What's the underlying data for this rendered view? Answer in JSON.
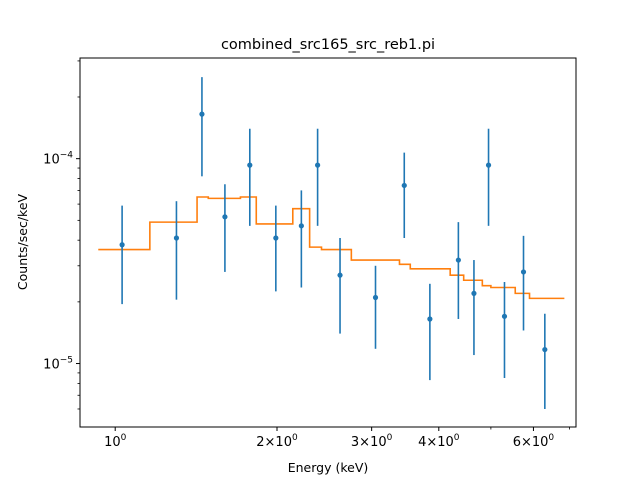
{
  "chart_data": {
    "type": "scatter",
    "title": "combined_src165_src_reb1.pi",
    "xlabel": "Energy (keV)",
    "ylabel": "Counts/sec/keV",
    "xscale": "log",
    "yscale": "log",
    "xlim": [
      0.86,
      7.2
    ],
    "ylim": [
      4.9e-06,
      0.00031
    ],
    "grid": false,
    "legend": "none",
    "x_ticks": [
      {
        "value": 1,
        "base": "10",
        "exp": "0"
      },
      {
        "value": 2,
        "base": "2×10",
        "exp": "0"
      },
      {
        "value": 3,
        "base": "3×10",
        "exp": "0"
      },
      {
        "value": 4,
        "base": "4×10",
        "exp": "0"
      },
      {
        "value": 6,
        "base": "6×10",
        "exp": "0"
      }
    ],
    "x_minor_ticks": [
      5,
      7
    ],
    "y_ticks": [
      {
        "value": 1e-05,
        "base": "10",
        "exp": "−5"
      },
      {
        "value": 0.0001,
        "base": "10",
        "exp": "−4"
      }
    ],
    "y_minor_ticks": [
      6e-06,
      7e-06,
      8e-06,
      9e-06,
      2e-05,
      3e-05,
      4e-05,
      5e-05,
      6e-05,
      7e-05,
      8e-05,
      9e-05,
      0.0002,
      0.0003
    ],
    "data_points": {
      "color": "#1f77b4",
      "points": [
        {
          "x": 1.03,
          "y": 3.8e-05,
          "ylo": 1.95e-05,
          "yhi": 5.9e-05
        },
        {
          "x": 1.3,
          "y": 4.1e-05,
          "ylo": 2.05e-05,
          "yhi": 6.2e-05
        },
        {
          "x": 1.45,
          "y": 0.000165,
          "ylo": 8.2e-05,
          "yhi": 0.00025
        },
        {
          "x": 1.6,
          "y": 5.2e-05,
          "ylo": 2.8e-05,
          "yhi": 7.5e-05
        },
        {
          "x": 1.78,
          "y": 9.3e-05,
          "ylo": 4.7e-05,
          "yhi": 0.00014
        },
        {
          "x": 1.99,
          "y": 4.1e-05,
          "ylo": 2.25e-05,
          "yhi": 5.9e-05
        },
        {
          "x": 2.22,
          "y": 4.7e-05,
          "ylo": 2.35e-05,
          "yhi": 7e-05
        },
        {
          "x": 2.38,
          "y": 9.3e-05,
          "ylo": 4.7e-05,
          "yhi": 0.00014
        },
        {
          "x": 2.62,
          "y": 2.7e-05,
          "ylo": 1.4e-05,
          "yhi": 4.1e-05
        },
        {
          "x": 3.05,
          "y": 2.1e-05,
          "ylo": 1.18e-05,
          "yhi": 3e-05
        },
        {
          "x": 3.45,
          "y": 7.4e-05,
          "ylo": 4.1e-05,
          "yhi": 0.000107
        },
        {
          "x": 3.85,
          "y": 1.65e-05,
          "ylo": 8.3e-06,
          "yhi": 2.45e-05
        },
        {
          "x": 4.35,
          "y": 3.2e-05,
          "ylo": 1.65e-05,
          "yhi": 4.9e-05
        },
        {
          "x": 4.65,
          "y": 2.2e-05,
          "ylo": 1.1e-05,
          "yhi": 3.2e-05
        },
        {
          "x": 4.95,
          "y": 9.3e-05,
          "ylo": 4.7e-05,
          "yhi": 0.00014
        },
        {
          "x": 5.3,
          "y": 1.7e-05,
          "ylo": 8.5e-06,
          "yhi": 2.5e-05
        },
        {
          "x": 5.75,
          "y": 2.8e-05,
          "ylo": 1.45e-05,
          "yhi": 4.2e-05
        },
        {
          "x": 6.3,
          "y": 1.17e-05,
          "ylo": 6e-06,
          "yhi": 1.75e-05
        }
      ]
    },
    "model": {
      "type": "step",
      "color": "#ff7f0e",
      "edges": [
        0.93,
        1.16,
        1.42,
        1.49,
        1.71,
        1.83,
        2.14,
        2.3,
        2.42,
        2.75,
        3.38,
        3.54,
        4.2,
        4.45,
        4.82,
        5.0,
        5.55,
        5.9,
        6.85
      ],
      "values": [
        3.6e-05,
        4.9e-05,
        6.5e-05,
        6.4e-05,
        6.5e-05,
        4.8e-05,
        5.7e-05,
        3.7e-05,
        3.6e-05,
        3.2e-05,
        3.05e-05,
        2.9e-05,
        2.7e-05,
        2.55e-05,
        2.4e-05,
        2.35e-05,
        2.2e-05,
        2.08e-05
      ]
    }
  }
}
